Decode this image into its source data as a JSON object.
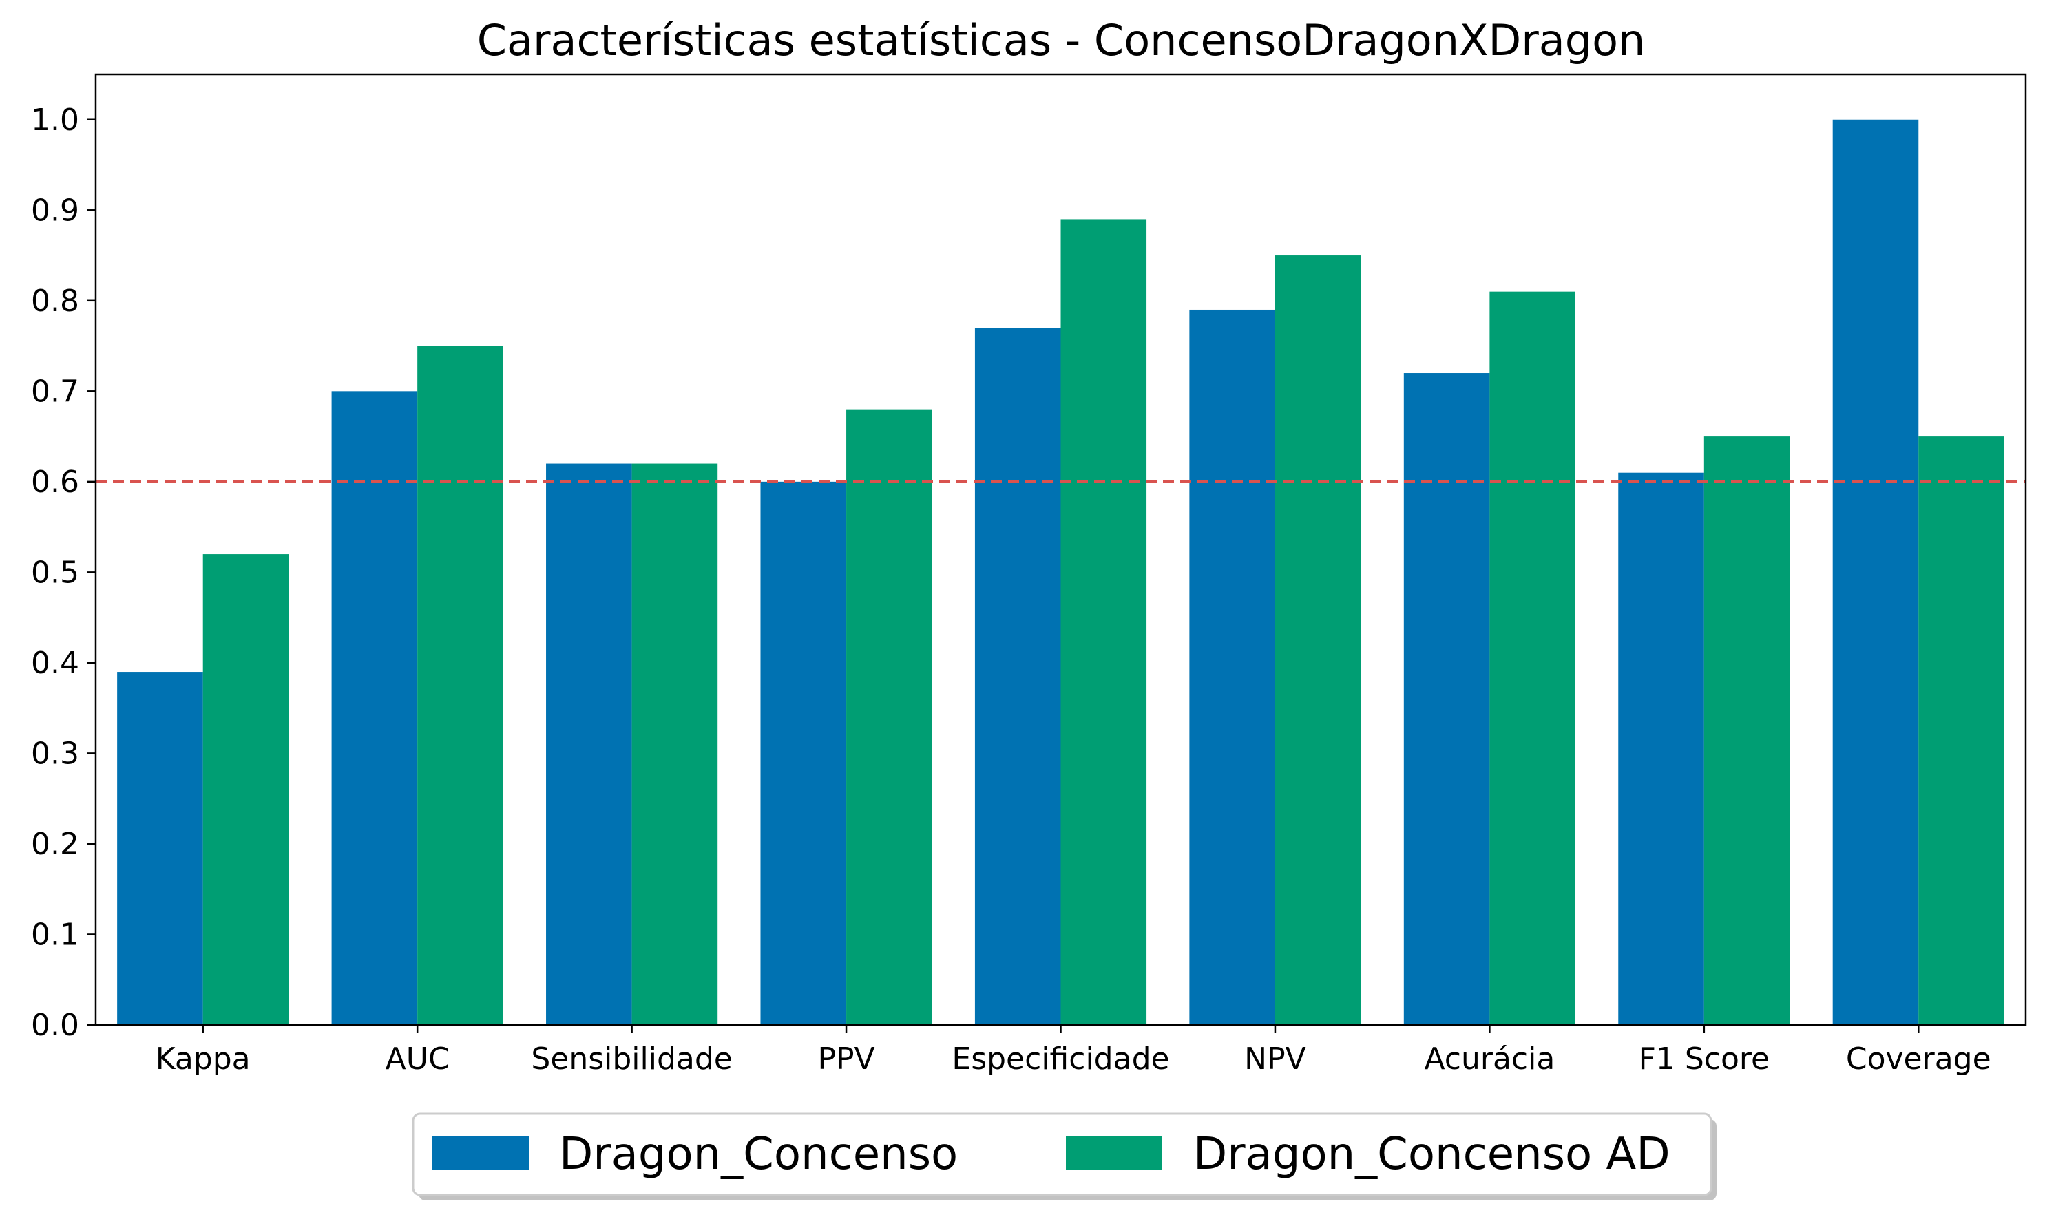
{
  "chart_data": {
    "type": "bar",
    "title": "Características estatísticas - ConcensoDragonXDragon",
    "xlabel": "",
    "ylabel": "",
    "categories": [
      "Kappa",
      "AUC",
      "Sensibilidade",
      "PPV",
      "Especificidade",
      "NPV",
      "Acurácia",
      "F1 Score",
      "Coverage"
    ],
    "series": [
      {
        "name": "Dragon_Concenso",
        "color": "#0072B2",
        "values": [
          0.39,
          0.7,
          0.62,
          0.6,
          0.77,
          0.79,
          0.72,
          0.61,
          1.0
        ]
      },
      {
        "name": "Dragon_Concenso AD",
        "color": "#009E73",
        "values": [
          0.52,
          0.75,
          0.62,
          0.68,
          0.89,
          0.85,
          0.81,
          0.65,
          0.65
        ]
      }
    ],
    "ylim": [
      0,
      1.05
    ],
    "yticks": [
      "0.0",
      "0.1",
      "0.2",
      "0.3",
      "0.4",
      "0.5",
      "0.6",
      "0.7",
      "0.8",
      "0.9",
      "1.0"
    ],
    "reference_line": {
      "value": 0.6,
      "color": "#D9534F",
      "style": "dashed"
    },
    "grid": false,
    "legend_placement": "bottom-center"
  }
}
